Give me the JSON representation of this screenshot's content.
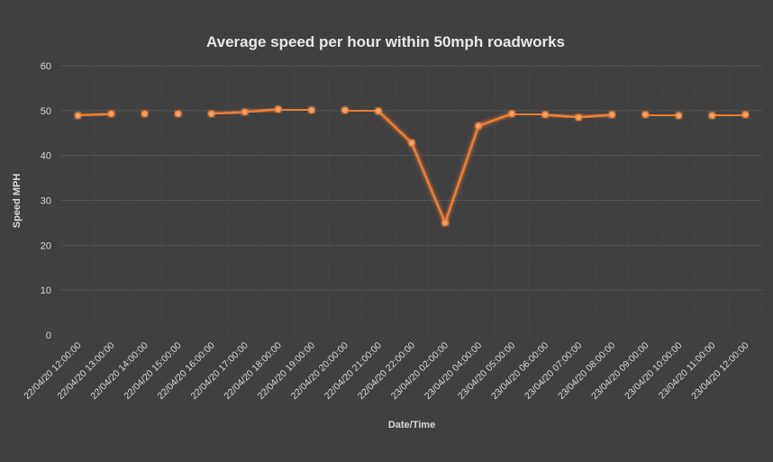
{
  "chart_data": {
    "type": "line",
    "title": "Average speed per hour within 50mph roadworks",
    "xlabel": "Date/Time",
    "ylabel": "Speed MPH",
    "ylim": [
      0,
      60
    ],
    "yticks": [
      0,
      10,
      20,
      30,
      40,
      50,
      60
    ],
    "grid": true,
    "categories": [
      "22/04/20  12:00:00",
      "22/04/20  13:00:00",
      "22/04/20  14:00:00",
      "22/04/20  15:00:00",
      "22/04/20  16:00:00",
      "22/04/20  17:00:00",
      "22/04/20  18:00:00",
      "22/04/20  19:00:00",
      "22/04/20  20:00:00",
      "22/04/20  21:00:00",
      "22/04/20  22:00:00",
      "23/04/20  02:00:00",
      "23/04/20  04:00:00",
      "23/04/20  05:00:00",
      "23/04/20  06:00:00",
      "23/04/20  07:00:00",
      "23/04/20  08:00:00",
      "23/04/20  09:00:00",
      "23/04/20  10:00:00",
      "23/04/20  11:00:00",
      "23/04/20  12:00:00"
    ],
    "series": [
      {
        "name": "Average speed",
        "color": "#ed7d31",
        "values": [
          48.9,
          49.3,
          49.3,
          49.3,
          49.3,
          49.7,
          50.3,
          50.1,
          50.1,
          49.9,
          42.8,
          25.0,
          46.6,
          49.3,
          49.1,
          48.5,
          49.1,
          49.1,
          48.9,
          48.9,
          49.1
        ]
      }
    ]
  }
}
